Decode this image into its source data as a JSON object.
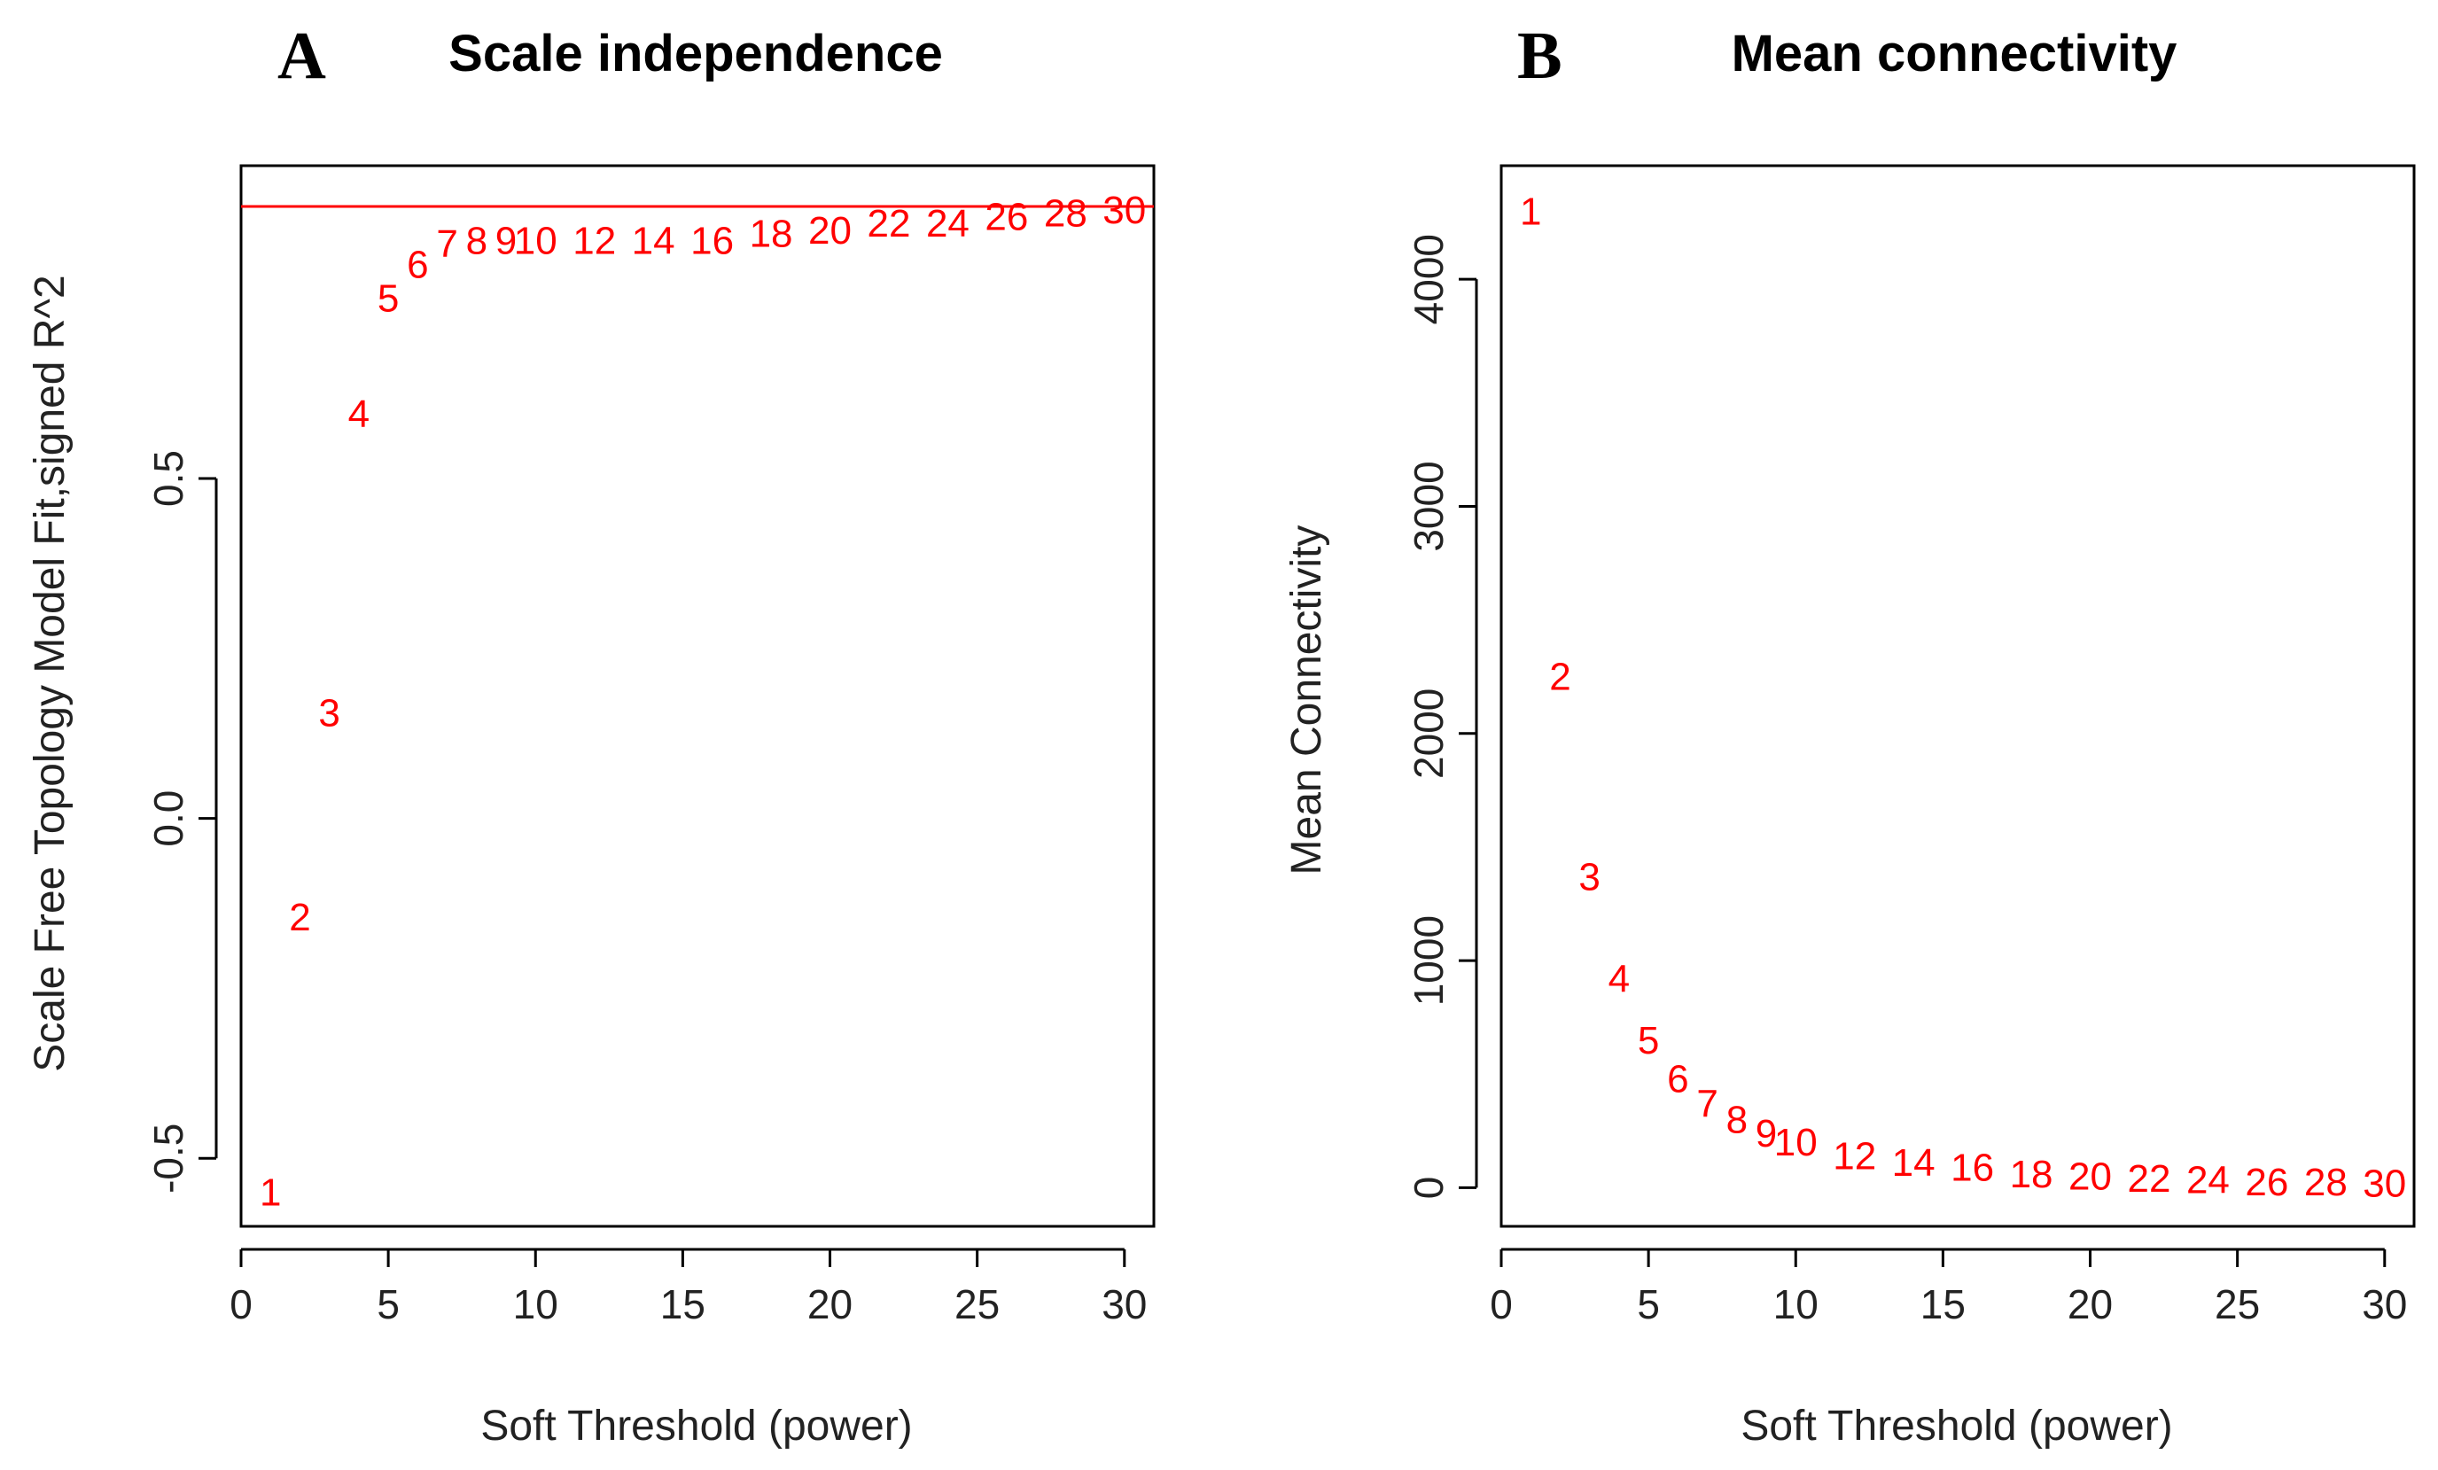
{
  "chart_data": [
    {
      "panel_letter": "A",
      "type": "scatter",
      "title": "Scale independence",
      "xlabel": "Soft Threshold (power)",
      "ylabel": "Scale Free Topology Model Fit,signed R^2",
      "xlim": [
        0,
        31
      ],
      "ylim": [
        -0.6,
        0.96
      ],
      "xticks": [
        0,
        5,
        10,
        15,
        20,
        25,
        30
      ],
      "yticks": [
        -0.5,
        0.0,
        0.5
      ],
      "ytick_labels": [
        "-0.5",
        "0.0",
        "0.5"
      ],
      "point_color": "#ff0000",
      "reference_line": {
        "y": 0.9,
        "color": "#ff0000"
      },
      "points": [
        {
          "label": "1",
          "x": 1,
          "y": -0.55
        },
        {
          "label": "2",
          "x": 2,
          "y": -0.145
        },
        {
          "label": "3",
          "x": 3,
          "y": 0.155
        },
        {
          "label": "4",
          "x": 4,
          "y": 0.595
        },
        {
          "label": "5",
          "x": 5,
          "y": 0.765
        },
        {
          "label": "6",
          "x": 6,
          "y": 0.815
        },
        {
          "label": "7",
          "x": 7,
          "y": 0.845
        },
        {
          "label": "8",
          "x": 8,
          "y": 0.85
        },
        {
          "label": "9",
          "x": 9,
          "y": 0.85
        },
        {
          "label": "10",
          "x": 10,
          "y": 0.85
        },
        {
          "label": "12",
          "x": 12,
          "y": 0.85
        },
        {
          "label": "14",
          "x": 14,
          "y": 0.85
        },
        {
          "label": "16",
          "x": 16,
          "y": 0.85
        },
        {
          "label": "18",
          "x": 18,
          "y": 0.86
        },
        {
          "label": "20",
          "x": 20,
          "y": 0.865
        },
        {
          "label": "22",
          "x": 22,
          "y": 0.875
        },
        {
          "label": "24",
          "x": 24,
          "y": 0.875
        },
        {
          "label": "26",
          "x": 26,
          "y": 0.885
        },
        {
          "label": "28",
          "x": 28,
          "y": 0.89
        },
        {
          "label": "30",
          "x": 30,
          "y": 0.895
        }
      ]
    },
    {
      "panel_letter": "B",
      "type": "scatter",
      "title": "Mean connectivity",
      "xlabel": "Soft Threshold (power)",
      "ylabel": "Mean Connectivity",
      "xlim": [
        0,
        31
      ],
      "ylim": [
        -170,
        4500
      ],
      "xticks": [
        0,
        5,
        10,
        15,
        20,
        25,
        30
      ],
      "yticks": [
        0,
        1000,
        2000,
        3000,
        4000
      ],
      "ytick_labels": [
        "0",
        "1000",
        "2000",
        "3000",
        "4000"
      ],
      "point_color": "#ff0000",
      "points": [
        {
          "label": "1",
          "x": 1,
          "y": 4300
        },
        {
          "label": "2",
          "x": 2,
          "y": 2250
        },
        {
          "label": "3",
          "x": 3,
          "y": 1370
        },
        {
          "label": "4",
          "x": 4,
          "y": 920
        },
        {
          "label": "5",
          "x": 5,
          "y": 650
        },
        {
          "label": "6",
          "x": 6,
          "y": 480
        },
        {
          "label": "7",
          "x": 7,
          "y": 370
        },
        {
          "label": "8",
          "x": 8,
          "y": 300
        },
        {
          "label": "9",
          "x": 9,
          "y": 240
        },
        {
          "label": "10",
          "x": 10,
          "y": 200
        },
        {
          "label": "12",
          "x": 12,
          "y": 140
        },
        {
          "label": "14",
          "x": 14,
          "y": 110
        },
        {
          "label": "16",
          "x": 16,
          "y": 90
        },
        {
          "label": "18",
          "x": 18,
          "y": 60
        },
        {
          "label": "20",
          "x": 20,
          "y": 50
        },
        {
          "label": "22",
          "x": 22,
          "y": 40
        },
        {
          "label": "24",
          "x": 24,
          "y": 35
        },
        {
          "label": "26",
          "x": 26,
          "y": 25
        },
        {
          "label": "28",
          "x": 28,
          "y": 25
        },
        {
          "label": "30",
          "x": 30,
          "y": 20
        }
      ]
    }
  ]
}
